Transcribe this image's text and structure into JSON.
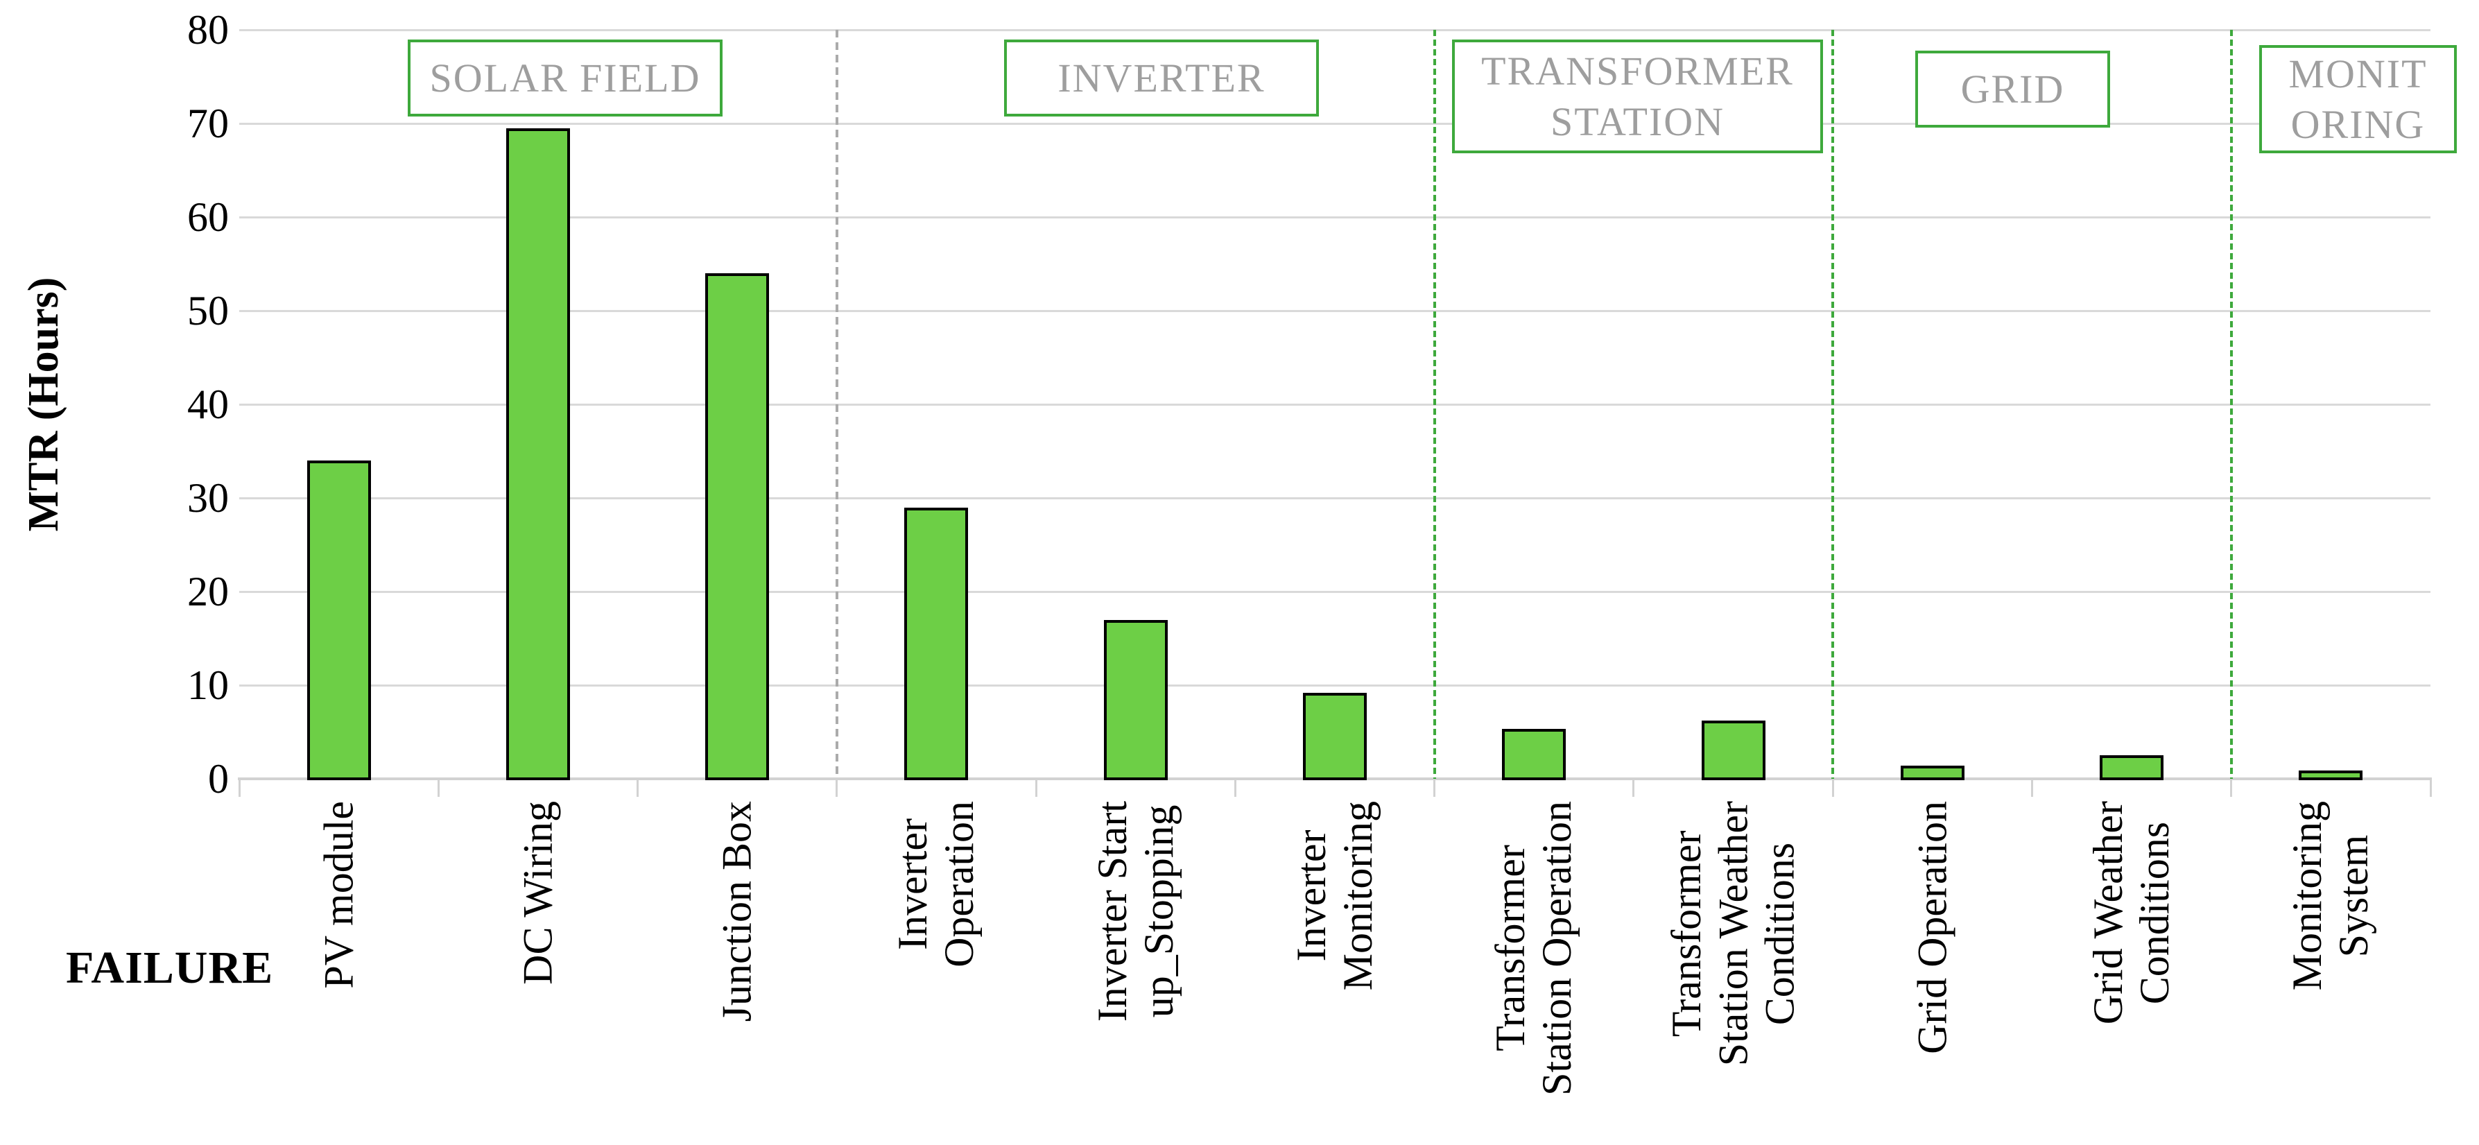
{
  "chart_data": {
    "type": "bar",
    "title": "",
    "xlabel": "FAILURE",
    "ylabel": "MTR (Hours)",
    "ylim": [
      0,
      80
    ],
    "ytick_step": 10,
    "yticks": [
      "0",
      "10",
      "20",
      "30",
      "40",
      "50",
      "60",
      "70",
      "80"
    ],
    "grid": true,
    "legend_position": "none",
    "categories": [
      "PV module",
      "DC Wiring",
      "Junction Box",
      "Inverter Operation",
      "Inverter Start up_Stopping",
      "Inverter Monitoring",
      "Transformer Station Operation",
      "Transformer Station Weather Conditions",
      "Grid Operation",
      "Grid Weather Conditions",
      "Monitoring System"
    ],
    "category_label_lines": [
      "PV module",
      "DC Wiring",
      "Junction Box",
      "Inverter\nOperation",
      "Inverter Start\nup_Stopping",
      "Inverter\nMonitoring",
      "Transformer\nStation Operation",
      "Transformer\nStation Weather\nConditions",
      "Grid Operation",
      "Grid Weather\nConditions",
      "Monitoring\nSystem"
    ],
    "values": [
      34,
      69.5,
      54,
      29,
      17,
      9.2,
      5.3,
      6.2,
      1.4,
      2.5,
      0.9
    ],
    "groups": [
      {
        "label": "SOLAR FIELD",
        "label_lines": "SOLAR FIELD",
        "first_category": 0,
        "last_category": 2
      },
      {
        "label": "INVERTER",
        "label_lines": "INVERTER",
        "first_category": 3,
        "last_category": 5
      },
      {
        "label": "TRANSFORMER STATION",
        "label_lines": "TRANSFORMER\nSTATION",
        "first_category": 6,
        "last_category": 7
      },
      {
        "label": "GRID",
        "label_lines": "GRID",
        "first_category": 8,
        "last_category": 9
      },
      {
        "label": "MONITORING",
        "label_lines": "MONIT\nORING",
        "first_category": 10,
        "last_category": 10
      }
    ],
    "separators": [
      {
        "after_category": 2,
        "color": "#ABABAB"
      },
      {
        "after_category": 5,
        "color": "#3EA93C"
      },
      {
        "after_category": 7,
        "color": "#3EA93C"
      },
      {
        "after_category": 9,
        "color": "#3EA93C"
      }
    ],
    "colors": {
      "bar_fill": "#6DCF46",
      "bar_border": "#000000",
      "grid_line": "#D9D9D9",
      "axis_line": "#D2D2D2",
      "group_box_border": "#3EA93C",
      "group_label_text": "#9E9E9E",
      "axis_text": "#000000"
    }
  }
}
